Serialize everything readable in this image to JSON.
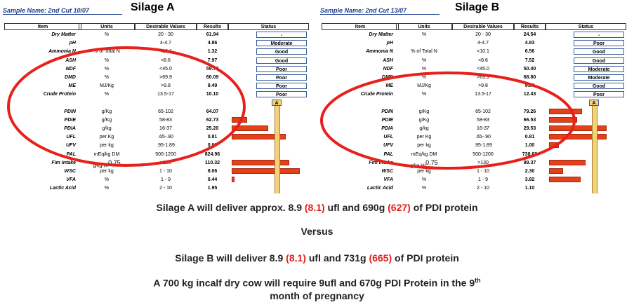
{
  "panels": [
    {
      "sample_name": "Sample Name: 2nd Cut 10/07",
      "title": "Silage A",
      "headers": [
        "Item",
        "Units",
        "Desirable Values",
        "Results",
        "Status"
      ],
      "marker": "A",
      "rows": [
        {
          "item": "Dry Matter",
          "units": "%",
          "desirable": "20 - 30",
          "result": "61.94",
          "status": "-"
        },
        {
          "item": "pH",
          "units": "",
          "desirable": "4-4.7",
          "result": "4.86",
          "status": "Moderate"
        },
        {
          "item": "Ammonia N",
          "units": "% of Total N",
          "desirable": "<10.1",
          "result": "1.32",
          "status": "Good"
        },
        {
          "item": "ASH",
          "units": "%",
          "desirable": "<8.6",
          "result": "7.97",
          "status": "Good"
        },
        {
          "item": "NDF",
          "units": "%",
          "desirable": "<45.0",
          "result": "59.70",
          "status": "Poor"
        },
        {
          "item": "DMD",
          "units": "%",
          "desirable": ">69.9",
          "result": "60.09",
          "status": "Poor"
        },
        {
          "item": "ME",
          "units": "MJ/Kg",
          "desirable": ">9.8",
          "result": "8.49",
          "status": "Poor"
        },
        {
          "item": "Crude Protein",
          "units": "%",
          "desirable": "13.5-17",
          "result": "10.10",
          "status": "Poor"
        },
        {
          "item": "PDIN",
          "units": "g/Kg",
          "desirable": "65-102",
          "result": "64.07",
          "bar": 0
        },
        {
          "item": "PDIE",
          "units": "g/Kg",
          "desirable": "58-83",
          "result": "62.73",
          "bar": 22
        },
        {
          "item": "PDIA",
          "units": "g/kg",
          "desirable": "16-37",
          "result": "25.20",
          "bar": 52
        },
        {
          "item": "UFL",
          "units": "per Kg",
          ".desirable": null,
          "desirable": ".65-.90",
          "result": "0.81",
          "bar": 77
        },
        {
          "item": "UFV",
          "units": "per kg",
          "desirable": ".95-1.89",
          "result": "0.90",
          "bar": 0
        },
        {
          "item": "PAL",
          "units": "mEq/kg DM",
          "desirable": "500-1200",
          "result": "824.96",
          "bar": 0
        },
        {
          "item": "Fim Intake",
          "units": "g/kg W",
          "units_sup": "0.75",
          "desirable": ">130",
          "result": "110.32",
          "bar": 82
        },
        {
          "item": "WSC",
          "units": "per kg",
          "desirable": "1 - 10",
          "result": "8.06",
          "bar": 97
        },
        {
          "item": "VFA",
          "units": "%",
          "desirable": "1 - 9",
          "result": "0.44",
          "bar": 4
        },
        {
          "item": "Lactic Acid",
          "units": "%",
          "desirable": "2 - 10",
          "result": "1.95",
          "bar": 0
        }
      ]
    },
    {
      "sample_name": "Sample Name: 2nd Cut 13/07",
      "title": "Silage B",
      "headers": [
        "Item",
        "Units",
        "Desirable Values",
        "Results",
        "Status"
      ],
      "marker": "A",
      "rows": [
        {
          "item": "Dry Matter",
          "units": "%",
          "desirable": "20 - 30",
          "result": "24.54",
          "status": "-"
        },
        {
          "item": "pH",
          "units": "",
          "desirable": "4-4.7",
          "result": "4.83",
          "status": "Poor"
        },
        {
          "item": "Ammonia N",
          "units": "% of Total N",
          "desirable": "<10.1",
          "result": "6.56",
          "status": "Good"
        },
        {
          "item": "ASH",
          "units": "%",
          "desirable": "<8.6",
          "result": "7.52",
          "status": "Good"
        },
        {
          "item": "NDF",
          "units": "%",
          "desirable": "<45.0",
          "result": "50.40",
          "status": "Moderate"
        },
        {
          "item": "DMD",
          "units": "%",
          "desirable": ">69.9",
          "result": "68.80",
          "status": "Moderate"
        },
        {
          "item": "ME",
          "units": "MJ/Kg",
          "desirable": ">9.8",
          "result": "9.86",
          "status": "Good"
        },
        {
          "item": "Crude Protein",
          "units": "%",
          "desirable": "13.5-17",
          "result": "12.43",
          "status": "Poor"
        },
        {
          "item": "PDIN",
          "units": "g/Kg",
          "desirable": "65-102",
          "result": "79.26",
          "bar": 47
        },
        {
          "item": "PDIE",
          "units": "g/Kg",
          "desirable": "58-83",
          "result": "66.53",
          "bar": 40
        },
        {
          "item": "PDIA",
          "units": "g/kg",
          "desirable": "16-37",
          "result": "29.53",
          "bar": 82
        },
        {
          "item": "UFL",
          "units": "per Kg",
          "desirable": ".65-.90",
          "result": "0.81",
          "bar": 82
        },
        {
          "item": "UFV",
          "units": "per kg",
          "desirable": ".95-1.89",
          "result": "1.00",
          "bar": 14
        },
        {
          "item": "PAL",
          "units": "mEq/kg DM",
          "desirable": "500-1200",
          "result": "738.62",
          "bar": 0
        },
        {
          "item": "Fim Intake",
          "units": "g/kg W",
          "units_sup": "0.75",
          "desirable": ">130",
          "result": "89.37",
          "bar": 52
        },
        {
          "item": "WSC",
          "units": "per kg",
          "desirable": "1 - 10",
          "result": "2.30",
          "bar": 20
        },
        {
          "item": "VFA",
          "units": "%",
          "desirable": "1 - 9",
          "result": "3.82",
          "bar": 45
        },
        {
          "item": "Lactic Acid",
          "units": "%",
          "desirable": "2 - 10",
          "result": "1.10",
          "bar": 0
        }
      ]
    }
  ],
  "conclusion": [
    [
      {
        "text": "Silage A will deliver approx. 8.9 "
      },
      {
        "text": "(8.1)",
        "red": true
      },
      {
        "text": " ufl and 690g "
      },
      {
        "text": "(627)",
        "red": true
      },
      {
        "text": " of PDI protein"
      }
    ],
    [
      {
        "text": "Versus"
      }
    ],
    [
      {
        "text": "Silage B will deliver 8.9 "
      },
      {
        "text": "(8.1)",
        "red": true
      },
      {
        "text": " ufl and 731g "
      },
      {
        "text": "(665)",
        "red": true
      },
      {
        "text": " of PDI protein"
      }
    ],
    [
      {
        "text": "A 700 kg incalf dry cow will require 9ufl and 670g PDI Protein in the 9"
      },
      {
        "text": "th",
        "sup": true
      }
    ],
    [
      {
        "text": "month of pregnancy"
      }
    ]
  ]
}
